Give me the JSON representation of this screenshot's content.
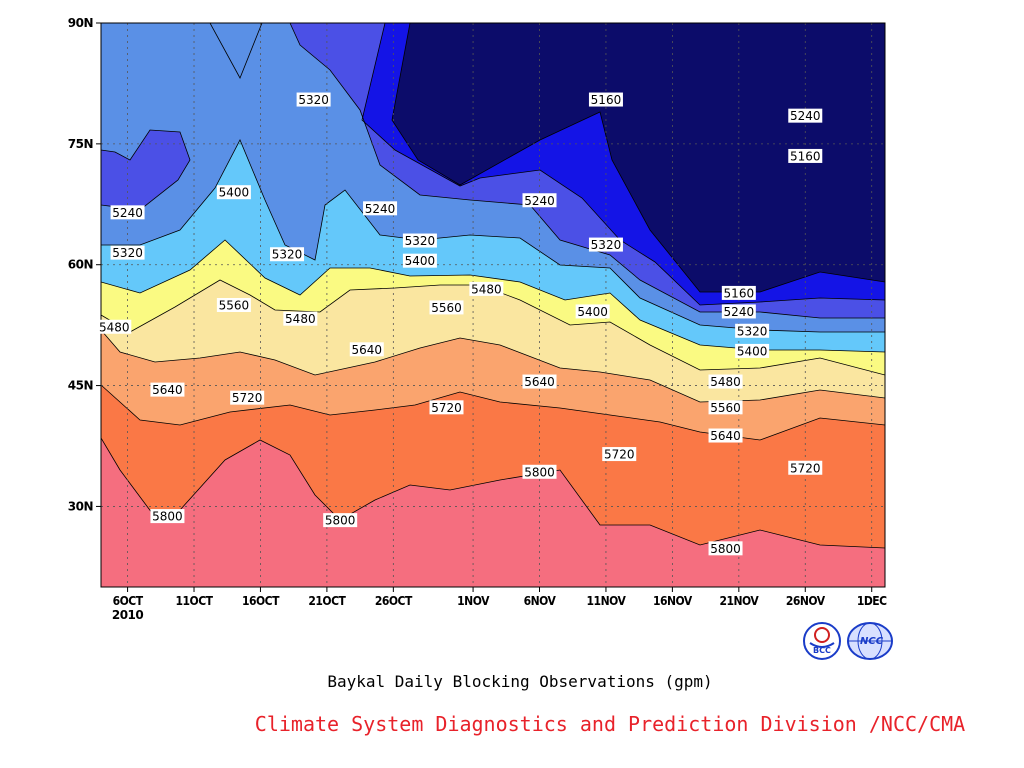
{
  "chart_data": {
    "type": "contour",
    "title": "Baykal Daily Blocking Observations (gpm)",
    "x_axis": {
      "type": "date",
      "range": [
        "2010-10-04",
        "2010-12-02"
      ],
      "tick_labels": [
        "6OCT",
        "11OCT",
        "16OCT",
        "21OCT",
        "26OCT",
        "1NOV",
        "6NOV",
        "11NOV",
        "16NOV",
        "21NOV",
        "26NOV",
        "1DEC"
      ],
      "year_label": "2010"
    },
    "y_axis": {
      "type": "latitude",
      "range": [
        20,
        90
      ],
      "tick_labels": [
        "30N",
        "45N",
        "60N",
        "75N",
        "90N"
      ],
      "tick_values": [
        30,
        45,
        60,
        75,
        90
      ]
    },
    "grid": "dotted",
    "contour_levels": [
      5160,
      5240,
      5320,
      5400,
      5480,
      5560,
      5640,
      5720,
      5800
    ],
    "fill_colors": [
      "#0c0c6a",
      "#1414e6",
      "#4b50e6",
      "#5a90e6",
      "#64c8fa",
      "#fafa82",
      "#fae6a0",
      "#faa46e",
      "#fa7846",
      "#f56e7f"
    ],
    "contour_labels": [
      {
        "label": "5320",
        "date": "2010-10-20",
        "lat": 80.5
      },
      {
        "label": "5160",
        "date": "2010-11-11",
        "lat": 80.5
      },
      {
        "label": "5240",
        "date": "2010-11-26",
        "lat": 78.5
      },
      {
        "label": "5160",
        "date": "2010-11-26",
        "lat": 73.5
      },
      {
        "label": "5400",
        "date": "2010-10-14",
        "lat": 69.0
      },
      {
        "label": "5240",
        "date": "2010-11-06",
        "lat": 68.0
      },
      {
        "label": "5240",
        "date": "2010-10-06",
        "lat": 66.5
      },
      {
        "label": "5240",
        "date": "2010-10-25",
        "lat": 67.0
      },
      {
        "label": "5320",
        "date": "2010-10-28",
        "lat": 63.0
      },
      {
        "label": "5320",
        "date": "2010-11-11",
        "lat": 62.5
      },
      {
        "label": "5320",
        "date": "2010-10-06",
        "lat": 61.5
      },
      {
        "label": "5320",
        "date": "2010-10-18",
        "lat": 61.3
      },
      {
        "label": "5400",
        "date": "2010-10-28",
        "lat": 60.5
      },
      {
        "label": "5480",
        "date": "2010-11-02",
        "lat": 57.0
      },
      {
        "label": "5160",
        "date": "2010-11-21",
        "lat": 56.5
      },
      {
        "label": "5560",
        "date": "2010-10-14",
        "lat": 55.0
      },
      {
        "label": "5560",
        "date": "2010-10-30",
        "lat": 54.7
      },
      {
        "label": "5400",
        "date": "2010-11-10",
        "lat": 54.2
      },
      {
        "label": "5240",
        "date": "2010-11-21",
        "lat": 54.2
      },
      {
        "label": "5480",
        "date": "2010-10-19",
        "lat": 53.3
      },
      {
        "label": "5320",
        "date": "2010-11-22",
        "lat": 51.8
      },
      {
        "label": "5480",
        "date": "2010-10-05",
        "lat": 52.3
      },
      {
        "label": "5640",
        "date": "2010-10-24",
        "lat": 49.5
      },
      {
        "label": "5400",
        "date": "2010-11-22",
        "lat": 49.3
      },
      {
        "label": "5480",
        "date": "2010-11-20",
        "lat": 45.5
      },
      {
        "label": "5640",
        "date": "2010-11-06",
        "lat": 45.5
      },
      {
        "label": "5640",
        "date": "2010-10-09",
        "lat": 44.5
      },
      {
        "label": "5720",
        "date": "2010-10-15",
        "lat": 43.5
      },
      {
        "label": "5560",
        "date": "2010-11-20",
        "lat": 42.3
      },
      {
        "label": "5720",
        "date": "2010-10-30",
        "lat": 42.3
      },
      {
        "label": "5640",
        "date": "2010-11-20",
        "lat": 38.8
      },
      {
        "label": "5720",
        "date": "2010-11-12",
        "lat": 36.5
      },
      {
        "label": "5720",
        "date": "2010-11-26",
        "lat": 34.8
      },
      {
        "label": "5800",
        "date": "2010-11-06",
        "lat": 34.3
      },
      {
        "label": "5800",
        "date": "2010-10-09",
        "lat": 28.8
      },
      {
        "label": "5800",
        "date": "2010-10-22",
        "lat": 28.3
      },
      {
        "label": "5800",
        "date": "2010-11-20",
        "lat": 24.8
      }
    ]
  },
  "footer": {
    "subtitle": "Baykal Daily Blocking Observations (gpm)",
    "credit": "Climate System Diagnostics and Prediction Division /NCC/CMA",
    "logo_left_text": "BCC",
    "logo_right_text": "NCC"
  }
}
